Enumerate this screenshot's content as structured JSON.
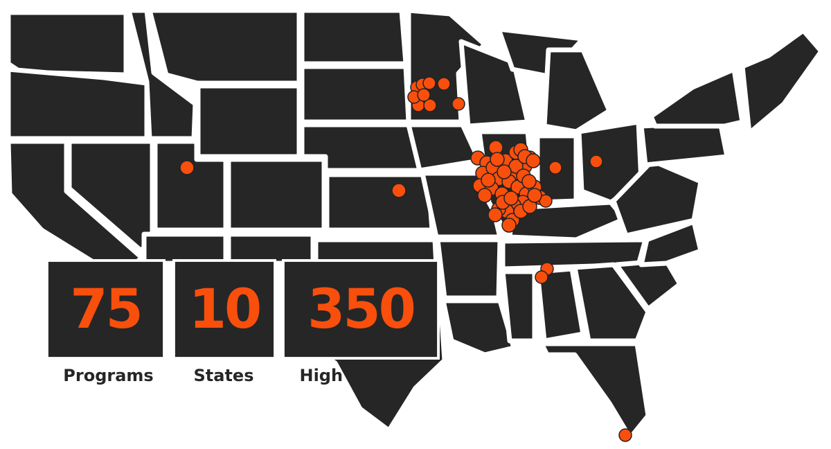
{
  "colors": {
    "state_fill": "#262626",
    "border": "#ffffff",
    "accent": "#f94f0c",
    "label": "#262626"
  },
  "stats": [
    {
      "value": "75",
      "label": "Programs"
    },
    {
      "value": "10",
      "label": "States"
    },
    {
      "value": "350",
      "label": "High Schools"
    }
  ]
}
